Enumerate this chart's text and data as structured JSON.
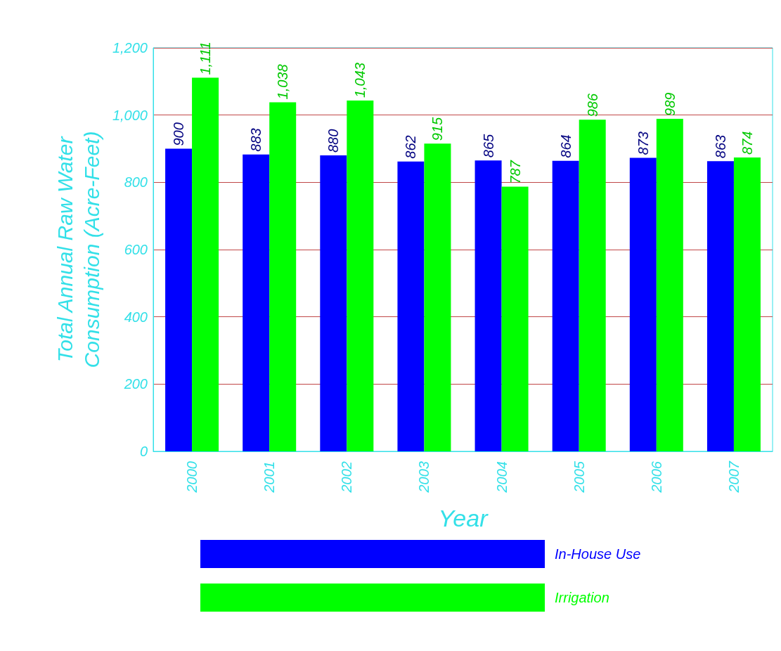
{
  "chart_data": {
    "type": "bar",
    "xlabel": "Year",
    "ylabel": "Total Annual Raw Water\nConsumption (Acre-Feet)",
    "categories": [
      "2000",
      "2001",
      "2002",
      "2003",
      "2004",
      "2005",
      "2006",
      "2007"
    ],
    "series": [
      {
        "name": "In-House Use",
        "color": "#0000ff",
        "values": [
          900,
          883,
          880,
          862,
          865,
          864,
          873,
          863
        ],
        "value_labels": [
          "900",
          "883",
          "880",
          "862",
          "865",
          "864",
          "873",
          "863"
        ]
      },
      {
        "name": "Irrigation",
        "color": "#00ff00",
        "values": [
          1111,
          1038,
          1043,
          915,
          787,
          986,
          989,
          874
        ],
        "value_labels": [
          "1,111",
          "1,038",
          "1,043",
          "915",
          "787",
          "986",
          "989",
          "874"
        ]
      }
    ],
    "ylim": [
      0,
      1200
    ],
    "yticks": [
      0,
      200,
      400,
      600,
      800,
      {
        "value": 1000,
        "label": "1,000"
      },
      {
        "value": 1200,
        "label": "1,200"
      }
    ],
    "grid": "y",
    "legend": "bottom"
  }
}
